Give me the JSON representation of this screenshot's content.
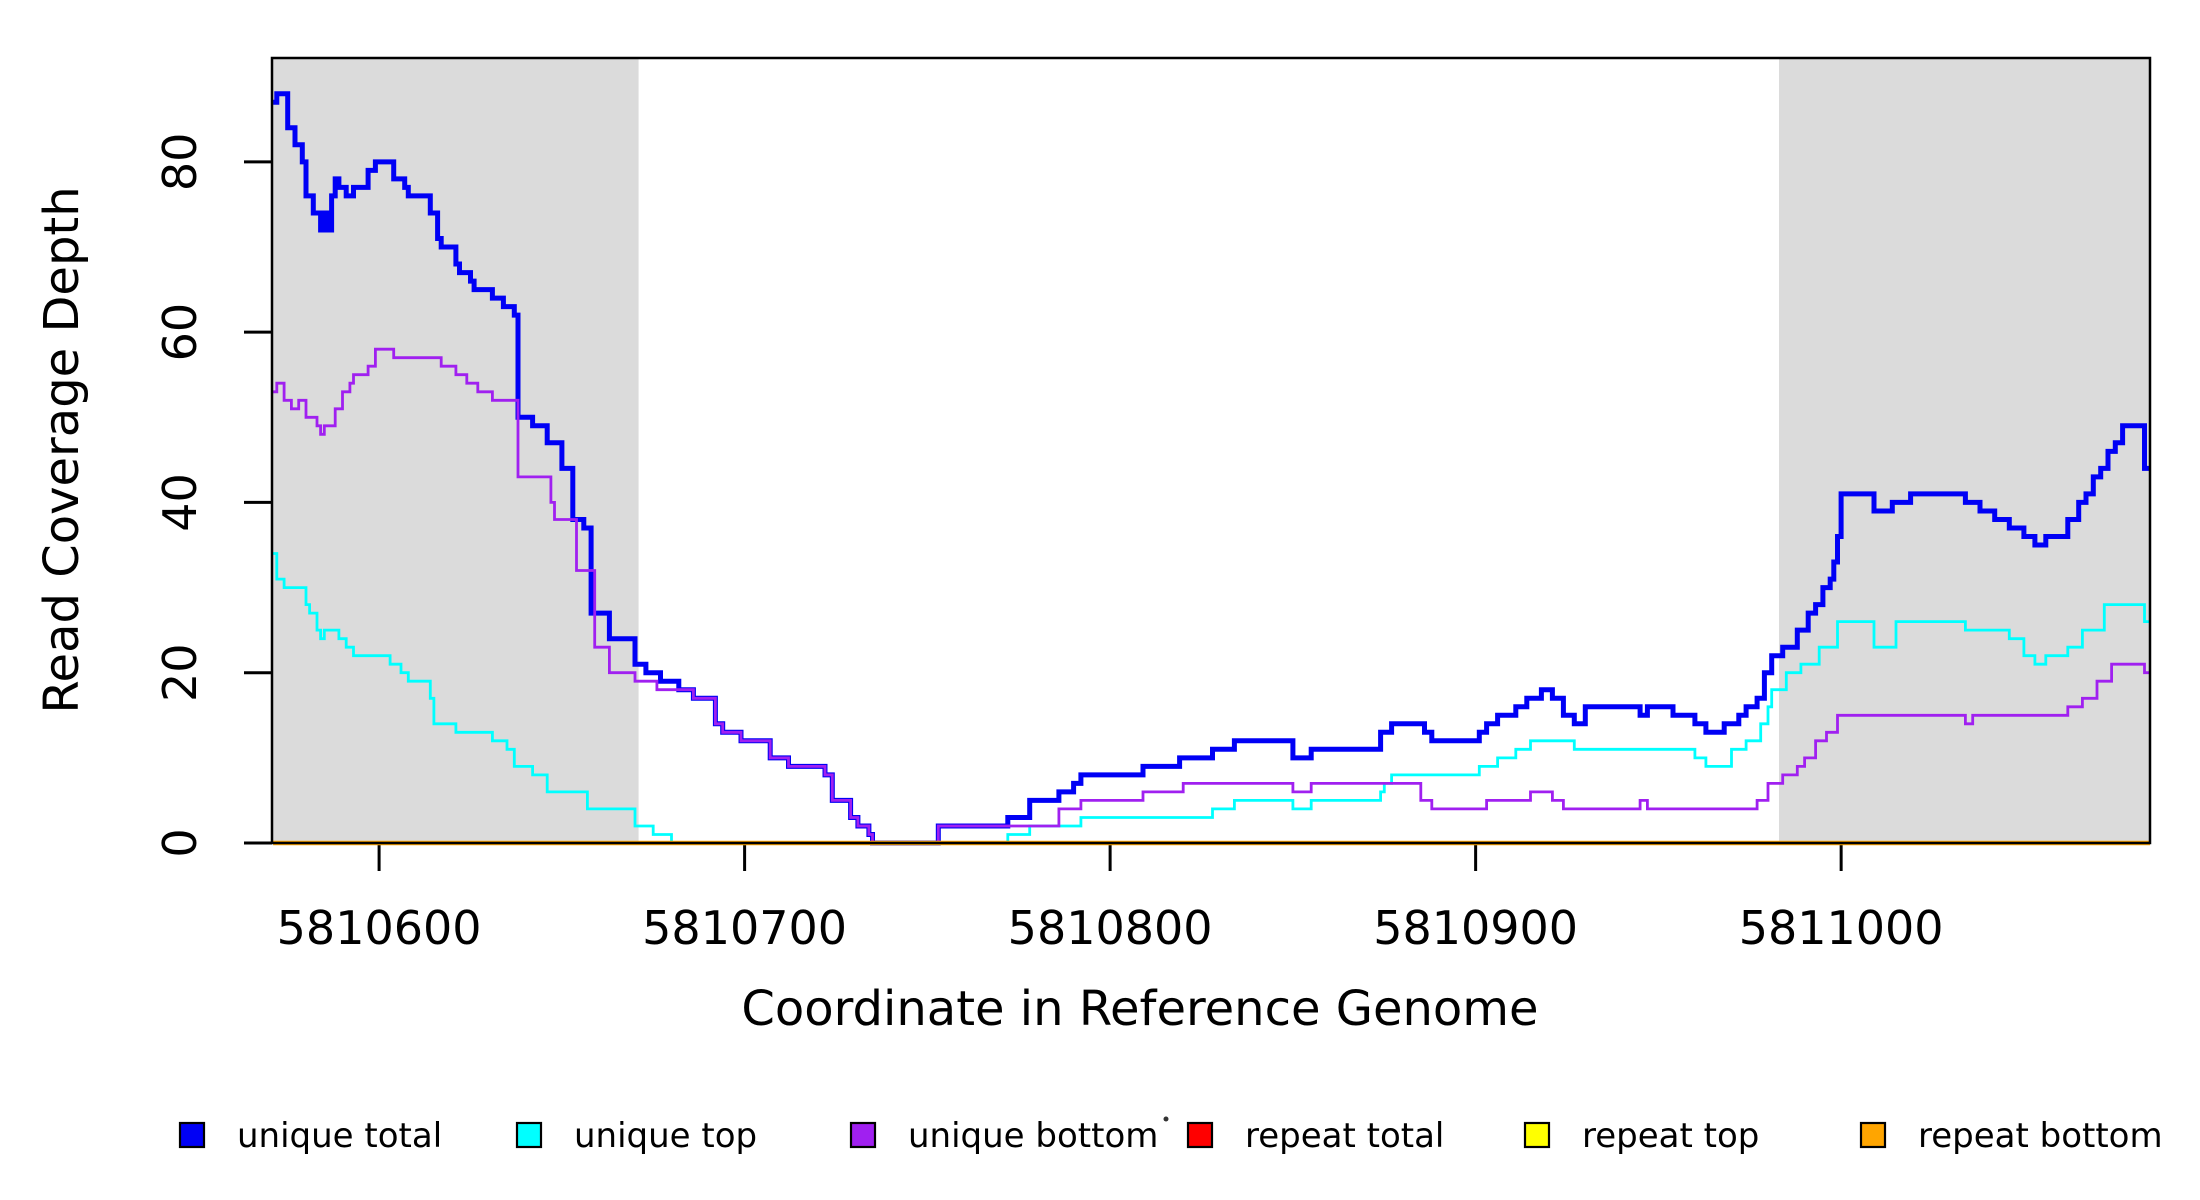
{
  "figure": {
    "background_color": "#FFFFFF",
    "shaded_band_color": "#DBDBDB",
    "plot_border_color": "#000000",
    "accent_colors": {
      "unique_total": "#0000F5",
      "unique_top": "#00FFFF",
      "unique_bottom": "#A020F0",
      "repeat_total": "#FF0000",
      "repeat_top": "#FFFF00",
      "repeat_bottom": "#FFA500"
    }
  },
  "chart_data": {
    "type": "step-line",
    "title": "",
    "xlabel": "Coordinate in Reference Genome",
    "ylabel": "Read Coverage Depth",
    "x_ticks": [
      5810600,
      5810700,
      5810800,
      5810900,
      5811000
    ],
    "x_tick_labels": [
      "5810600",
      "5810700",
      "5810800",
      "5810900",
      "5811000"
    ],
    "y_ticks": [
      0,
      20,
      40,
      60,
      80
    ],
    "y_tick_labels": [
      "0",
      "20",
      "40",
      "60",
      "80"
    ],
    "xlim": [
      5810570.7,
      5811084.5
    ],
    "ylim": [
      0,
      92.2
    ],
    "grid": false,
    "legend_position": "bottom",
    "shaded_x_regions": [
      [
        5810570.7,
        5810671
      ],
      [
        5810983,
        5811084.5
      ]
    ],
    "series": [
      {
        "name": "unique total",
        "color": "#0000F5",
        "line_width": 5,
        "points": [
          [
            5810571,
            87
          ],
          [
            5810572,
            88
          ],
          [
            5810575,
            84
          ],
          [
            5810577,
            82
          ],
          [
            5810579,
            80
          ],
          [
            5810580,
            76
          ],
          [
            5810582,
            74
          ],
          [
            5810584,
            72
          ],
          [
            5810585,
            74
          ],
          [
            5810586,
            72
          ],
          [
            5810587,
            76
          ],
          [
            5810588,
            78
          ],
          [
            5810589,
            77
          ],
          [
            5810591,
            76
          ],
          [
            5810593,
            77
          ],
          [
            5810597,
            79
          ],
          [
            5810599,
            80
          ],
          [
            5810604,
            78
          ],
          [
            5810607,
            77
          ],
          [
            5810608,
            76
          ],
          [
            5810614,
            74
          ],
          [
            5810616,
            71
          ],
          [
            5810617,
            70
          ],
          [
            5810621,
            68
          ],
          [
            5810622,
            67
          ],
          [
            5810625,
            66
          ],
          [
            5810626,
            65
          ],
          [
            5810631,
            64
          ],
          [
            5810634,
            63
          ],
          [
            5810637,
            62
          ],
          [
            5810638,
            50
          ],
          [
            5810642,
            49
          ],
          [
            5810646,
            47
          ],
          [
            5810650,
            44
          ],
          [
            5810653,
            38
          ],
          [
            5810656,
            37
          ],
          [
            5810658,
            27
          ],
          [
            5810663,
            24
          ],
          [
            5810670,
            21
          ],
          [
            5810673,
            20
          ],
          [
            5810677,
            19
          ],
          [
            5810682,
            18
          ],
          [
            5810686,
            17
          ],
          [
            5810692,
            14
          ],
          [
            5810694,
            13
          ],
          [
            5810699,
            12
          ],
          [
            5810707,
            10
          ],
          [
            5810712,
            9
          ],
          [
            5810722,
            8
          ],
          [
            5810724,
            5
          ],
          [
            5810729,
            3
          ],
          [
            5810731,
            2
          ],
          [
            5810734,
            1
          ],
          [
            5810735,
            0
          ],
          [
            5810753,
            2
          ],
          [
            5810772,
            3
          ],
          [
            5810778,
            5
          ],
          [
            5810786,
            6
          ],
          [
            5810790,
            7
          ],
          [
            5810792,
            8
          ],
          [
            5810809,
            9
          ],
          [
            5810819,
            10
          ],
          [
            5810828,
            11
          ],
          [
            5810834,
            12
          ],
          [
            5810850,
            10
          ],
          [
            5810855,
            11
          ],
          [
            5810874,
            13
          ],
          [
            5810877,
            14
          ],
          [
            5810886,
            13
          ],
          [
            5810888,
            12
          ],
          [
            5810901,
            13
          ],
          [
            5810903,
            14
          ],
          [
            5810906,
            15
          ],
          [
            5810911,
            16
          ],
          [
            5810914,
            17
          ],
          [
            5810918,
            18
          ],
          [
            5810921,
            17
          ],
          [
            5810924,
            15
          ],
          [
            5810927,
            14
          ],
          [
            5810930,
            16
          ],
          [
            5810945,
            15
          ],
          [
            5810947,
            16
          ],
          [
            5810954,
            15
          ],
          [
            5810960,
            14
          ],
          [
            5810963,
            13
          ],
          [
            5810968,
            14
          ],
          [
            5810972,
            15
          ],
          [
            5810974,
            16
          ],
          [
            5810977,
            17
          ],
          [
            5810979,
            20
          ],
          [
            5810981,
            22
          ],
          [
            5810984,
            23
          ],
          [
            5810988,
            25
          ],
          [
            5810991,
            27
          ],
          [
            5810993,
            28
          ],
          [
            5810995,
            30
          ],
          [
            5810997,
            31
          ],
          [
            5810998,
            33
          ],
          [
            5810999,
            36
          ],
          [
            5811000,
            41
          ],
          [
            5811009,
            39
          ],
          [
            5811014,
            40
          ],
          [
            5811019,
            41
          ],
          [
            5811034,
            40
          ],
          [
            5811038,
            39
          ],
          [
            5811042,
            38
          ],
          [
            5811046,
            37
          ],
          [
            5811050,
            36
          ],
          [
            5811053,
            35
          ],
          [
            5811056,
            36
          ],
          [
            5811062,
            38
          ],
          [
            5811065,
            40
          ],
          [
            5811067,
            41
          ],
          [
            5811069,
            43
          ],
          [
            5811071,
            44
          ],
          [
            5811073,
            46
          ],
          [
            5811075,
            47
          ],
          [
            5811077,
            49
          ],
          [
            5811083,
            44
          ]
        ]
      },
      {
        "name": "unique top",
        "color": "#00FFFF",
        "line_width": 2.8,
        "points": [
          [
            5810571,
            34
          ],
          [
            5810572,
            31
          ],
          [
            5810574,
            30
          ],
          [
            5810580,
            28
          ],
          [
            5810581,
            27
          ],
          [
            5810583,
            25
          ],
          [
            5810584,
            24
          ],
          [
            5810585,
            25
          ],
          [
            5810589,
            24
          ],
          [
            5810591,
            23
          ],
          [
            5810593,
            22
          ],
          [
            5810603,
            21
          ],
          [
            5810606,
            20
          ],
          [
            5810608,
            19
          ],
          [
            5810614,
            17
          ],
          [
            5810615,
            14
          ],
          [
            5810621,
            13
          ],
          [
            5810631,
            12
          ],
          [
            5810635,
            11
          ],
          [
            5810637,
            9
          ],
          [
            5810642,
            8
          ],
          [
            5810646,
            6
          ],
          [
            5810657,
            4
          ],
          [
            5810670,
            2
          ],
          [
            5810675,
            1
          ],
          [
            5810680,
            0
          ],
          [
            5810772,
            1
          ],
          [
            5810778,
            2
          ],
          [
            5810792,
            3
          ],
          [
            5810828,
            4
          ],
          [
            5810834,
            5
          ],
          [
            5810850,
            4
          ],
          [
            5810855,
            5
          ],
          [
            5810874,
            6
          ],
          [
            5810875,
            7
          ],
          [
            5810877,
            8
          ],
          [
            5810901,
            9
          ],
          [
            5810906,
            10
          ],
          [
            5810911,
            11
          ],
          [
            5810915,
            12
          ],
          [
            5810927,
            11
          ],
          [
            5810960,
            10
          ],
          [
            5810963,
            9
          ],
          [
            5810970,
            11
          ],
          [
            5810974,
            12
          ],
          [
            5810978,
            14
          ],
          [
            5810980,
            16
          ],
          [
            5810981,
            18
          ],
          [
            5810985,
            20
          ],
          [
            5810989,
            21
          ],
          [
            5810994,
            23
          ],
          [
            5810999,
            26
          ],
          [
            5811009,
            23
          ],
          [
            5811015,
            26
          ],
          [
            5811034,
            25
          ],
          [
            5811046,
            24
          ],
          [
            5811050,
            22
          ],
          [
            5811053,
            21
          ],
          [
            5811056,
            22
          ],
          [
            5811062,
            23
          ],
          [
            5811066,
            25
          ],
          [
            5811072,
            28
          ],
          [
            5811083,
            26
          ]
        ]
      },
      {
        "name": "unique bottom",
        "color": "#A020F0",
        "line_width": 2.8,
        "points": [
          [
            5810571,
            53
          ],
          [
            5810572,
            54
          ],
          [
            5810574,
            52
          ],
          [
            5810576,
            51
          ],
          [
            5810578,
            52
          ],
          [
            5810580,
            50
          ],
          [
            5810583,
            49
          ],
          [
            5810584,
            48
          ],
          [
            5810585,
            49
          ],
          [
            5810588,
            51
          ],
          [
            5810590,
            53
          ],
          [
            5810592,
            54
          ],
          [
            5810593,
            55
          ],
          [
            5810597,
            56
          ],
          [
            5810599,
            58
          ],
          [
            5810604,
            57
          ],
          [
            5810617,
            56
          ],
          [
            5810621,
            55
          ],
          [
            5810624,
            54
          ],
          [
            5810627,
            53
          ],
          [
            5810631,
            52
          ],
          [
            5810638,
            43
          ],
          [
            5810647,
            40
          ],
          [
            5810648,
            38
          ],
          [
            5810654,
            32
          ],
          [
            5810659,
            23
          ],
          [
            5810663,
            20
          ],
          [
            5810670,
            19
          ],
          [
            5810676,
            18
          ],
          [
            5810686,
            17
          ],
          [
            5810692,
            14
          ],
          [
            5810694,
            13
          ],
          [
            5810699,
            12
          ],
          [
            5810707,
            10
          ],
          [
            5810712,
            9
          ],
          [
            5810722,
            8
          ],
          [
            5810724,
            5
          ],
          [
            5810729,
            3
          ],
          [
            5810731,
            2
          ],
          [
            5810734,
            1
          ],
          [
            5810735,
            0
          ],
          [
            5810753,
            2
          ],
          [
            5810786,
            4
          ],
          [
            5810792,
            5
          ],
          [
            5810809,
            6
          ],
          [
            5810820,
            7
          ],
          [
            5810850,
            6
          ],
          [
            5810855,
            7
          ],
          [
            5810885,
            5
          ],
          [
            5810888,
            4
          ],
          [
            5810903,
            5
          ],
          [
            5810915,
            6
          ],
          [
            5810921,
            5
          ],
          [
            5810924,
            4
          ],
          [
            5810945,
            5
          ],
          [
            5810947,
            4
          ],
          [
            5810977,
            5
          ],
          [
            5810980,
            7
          ],
          [
            5810984,
            8
          ],
          [
            5810988,
            9
          ],
          [
            5810990,
            10
          ],
          [
            5810993,
            12
          ],
          [
            5810996,
            13
          ],
          [
            5810999,
            15
          ],
          [
            5811034,
            14
          ],
          [
            5811036,
            15
          ],
          [
            5811062,
            16
          ],
          [
            5811066,
            17
          ],
          [
            5811070,
            19
          ],
          [
            5811074,
            21
          ],
          [
            5811083,
            20
          ]
        ]
      },
      {
        "name": "repeat total",
        "color": "#FF0000",
        "line_width": 2.8,
        "points": [
          [
            5810571,
            0
          ]
        ]
      },
      {
        "name": "repeat top",
        "color": "#FFFF00",
        "line_width": 2.8,
        "points": [
          [
            5810571,
            0
          ]
        ]
      },
      {
        "name": "repeat bottom",
        "color": "#FFA500",
        "line_width": 4.5,
        "points": [
          [
            5810571,
            0
          ]
        ]
      }
    ]
  },
  "legend": {
    "entries": [
      {
        "label": "unique total",
        "color": "#0000F5"
      },
      {
        "label": "unique top",
        "color": "#00FFFF"
      },
      {
        "label": "unique bottom",
        "color": "#A020F0"
      },
      {
        "label": "repeat total",
        "color": "#FF0000"
      },
      {
        "label": "repeat top",
        "color": "#FFFF00"
      },
      {
        "label": "repeat bottom",
        "color": "#FFA500"
      }
    ]
  }
}
